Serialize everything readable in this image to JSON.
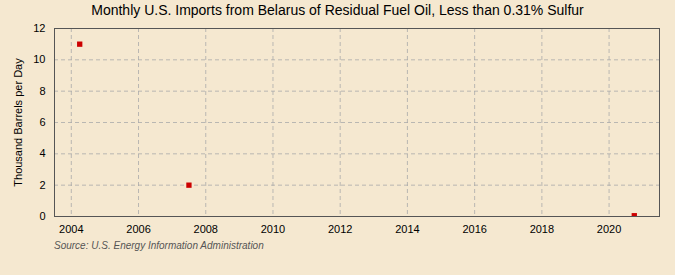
{
  "chart_data": {
    "type": "scatter",
    "title": "Monthly U.S. Imports from Belarus of Residual Fuel Oil, Less than 0.31% Sulfur",
    "ylabel": "Thousand Barrels per Day",
    "annotation": "Source: U.S. Energy Information Administration",
    "x": [
      2004.25,
      2007.5,
      2020.75
    ],
    "values": [
      11.0,
      2.0,
      0.05
    ],
    "color": "#cc0000",
    "marker": "square",
    "xlim": [
      2003.5,
      2021.5
    ],
    "ylim": [
      0,
      12
    ],
    "xticks": [
      2004,
      2006,
      2008,
      2010,
      2012,
      2014,
      2016,
      2018,
      2020
    ],
    "yticks": [
      0,
      2,
      4,
      6,
      8,
      10,
      12
    ],
    "grid": true
  }
}
